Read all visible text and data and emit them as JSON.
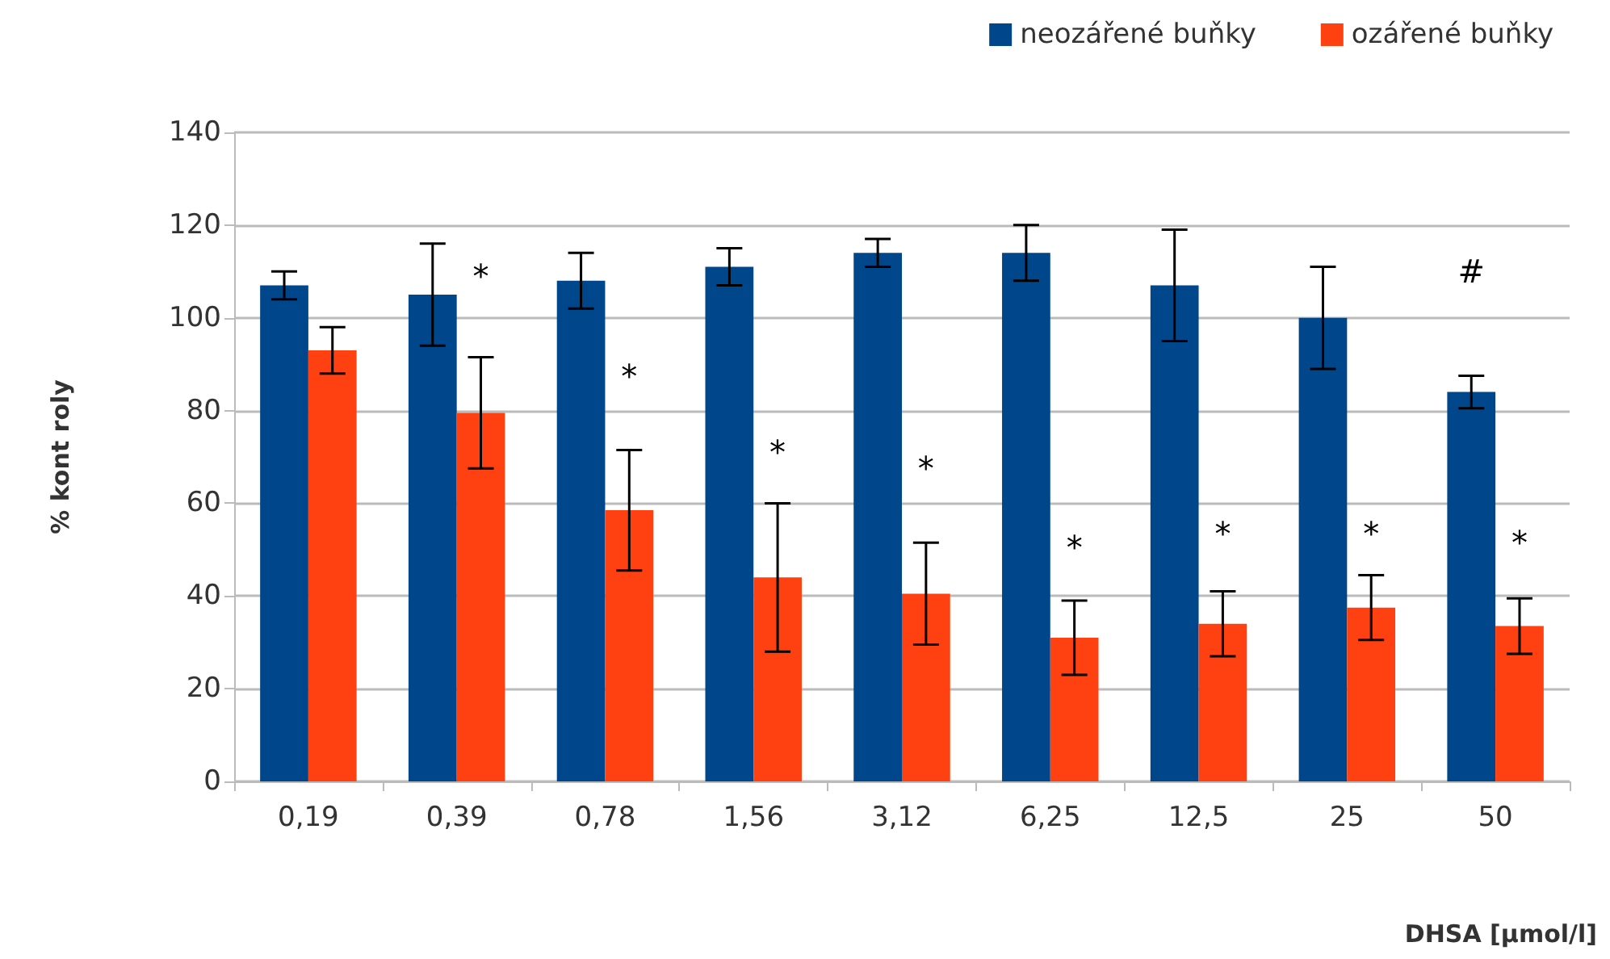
{
  "chart_data": {
    "type": "bar",
    "xlabel": "DHSA [µmol/l]",
    "ylabel": "% kont roly",
    "categories": [
      "0,19",
      "0,39",
      "0,78",
      "1,56",
      "3,12",
      "6,25",
      "12,5",
      "25",
      "50"
    ],
    "series": [
      {
        "name": "neozářené buňky",
        "color": "#00468b",
        "values": [
          107,
          105,
          108,
          111,
          114,
          114,
          107,
          100,
          84
        ],
        "errors": [
          3,
          11,
          6,
          4,
          3,
          6,
          12,
          11,
          3.5
        ]
      },
      {
        "name": "ozářené buňky",
        "color": "#ff4010",
        "values": [
          93,
          79.5,
          58.5,
          44,
          40.5,
          31,
          34,
          37.5,
          33.5
        ],
        "errors": [
          5,
          12,
          13,
          16,
          11,
          8,
          7,
          7,
          6
        ]
      }
    ],
    "ylim": [
      0,
      140
    ],
    "yticks": [
      0,
      20,
      40,
      60,
      80,
      100,
      120,
      140
    ],
    "grid": "y",
    "legend": "top right",
    "annotations": [
      "*",
      "*",
      "*",
      "*",
      "*",
      "*",
      "*",
      "*",
      "#"
    ]
  }
}
